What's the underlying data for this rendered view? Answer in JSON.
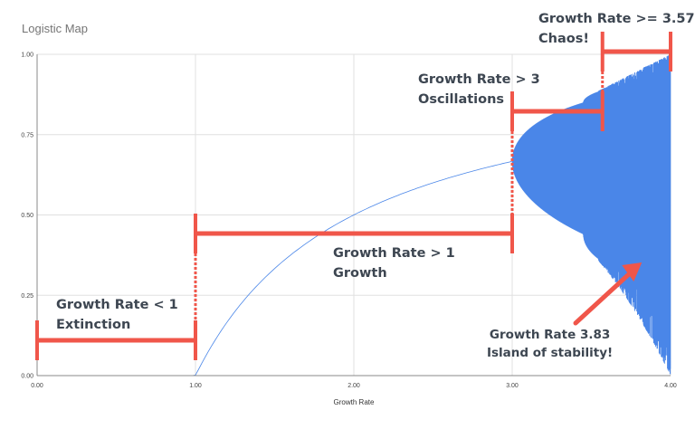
{
  "chart_data": {
    "type": "line",
    "title": "Logistic Map",
    "xlabel": "Growth Rate",
    "ylabel": "",
    "xlim": [
      0,
      4
    ],
    "ylim": [
      0,
      1
    ],
    "x_ticks": [
      "0.00",
      "1.00",
      "2.00",
      "3.00",
      "4.00"
    ],
    "y_ticks": [
      "0.00",
      "0.25",
      "0.50",
      "0.75",
      "1.00"
    ],
    "grid": true,
    "series": [
      {
        "x": [
          0,
          1,
          1.5,
          2,
          2.5,
          3,
          3.2,
          3.5,
          3.57,
          3.83,
          4
        ],
        "y_sample": [
          0,
          0,
          0.333,
          0.5,
          0.6,
          0.667,
          0.513,
          0.383,
          0.34,
          0.156,
          0
        ]
      }
    ],
    "color": "#4a86e8"
  },
  "annotations": {
    "color": "#f0564a",
    "extinction": {
      "line1": "Growth Rate < 1",
      "line2": "Extinction",
      "range": [
        0,
        1
      ]
    },
    "growth": {
      "line1": "Growth Rate > 1",
      "line2": "Growth",
      "range": [
        1,
        3
      ]
    },
    "oscillations": {
      "line1": "Growth Rate > 3",
      "line2": "Oscillations",
      "range": [
        3,
        3.57
      ]
    },
    "chaos": {
      "line1": "Growth Rate >= 3.57",
      "line2": "Chaos!",
      "range": [
        3.57,
        4
      ]
    },
    "island": {
      "line1": "Growth Rate 3.83",
      "line2": "Island of stability!",
      "at": 3.83
    }
  }
}
